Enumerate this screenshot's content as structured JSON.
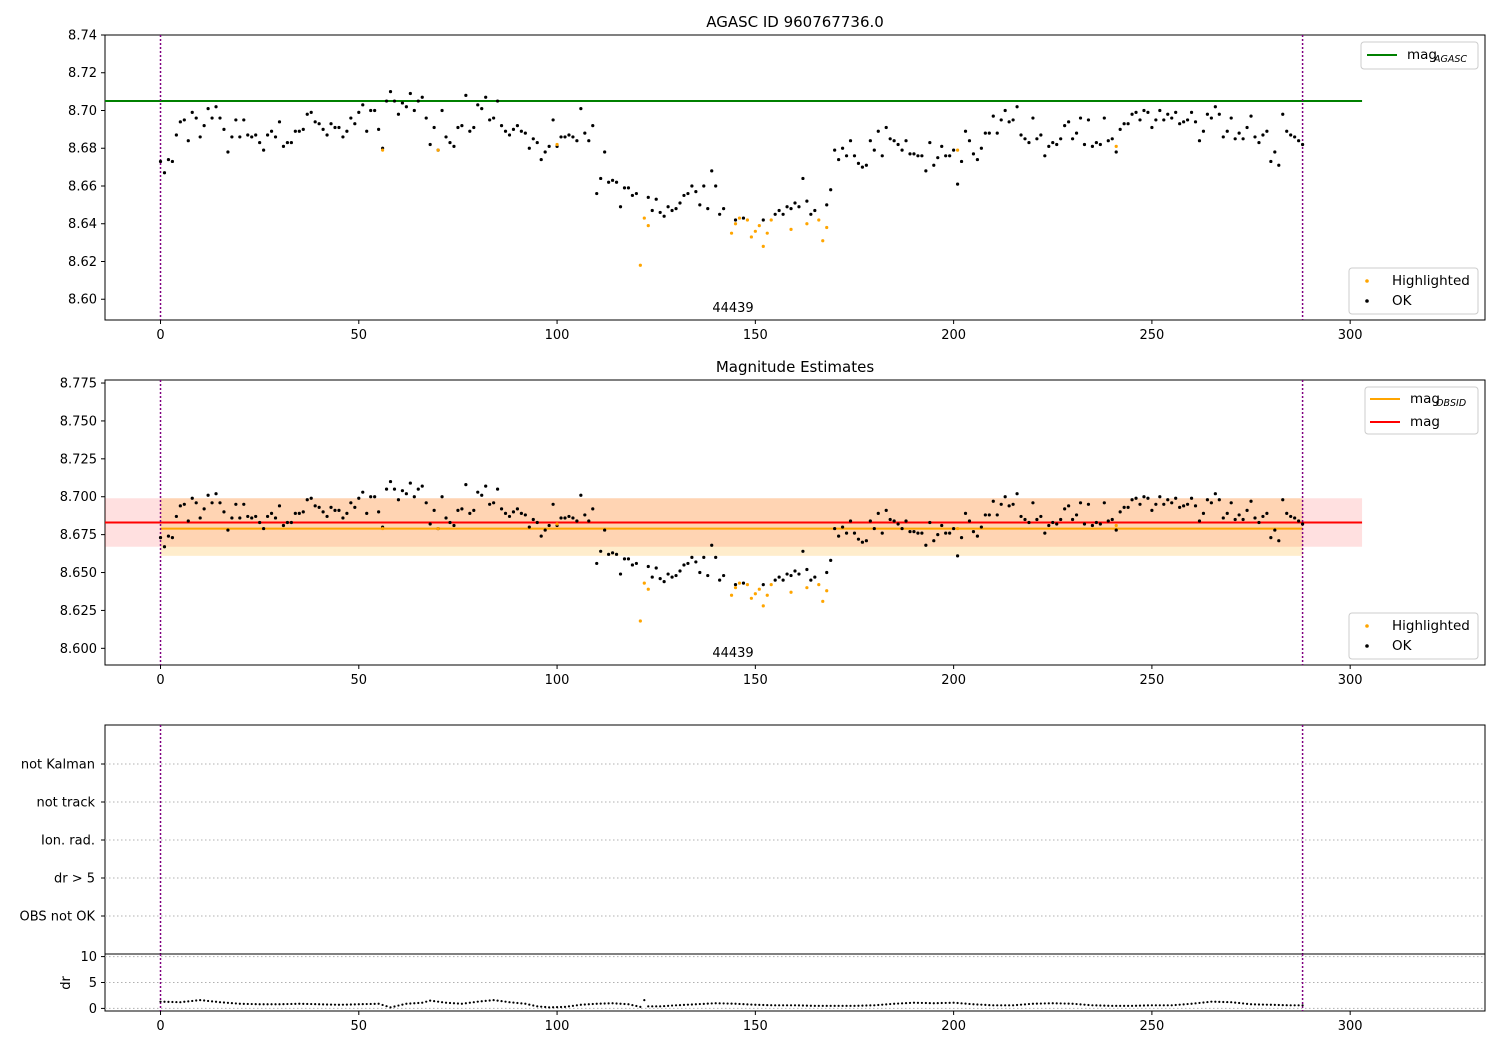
{
  "figure_title": "AGASC ID 960767736.0",
  "chart_data": [
    {
      "id": "top",
      "type": "scatter",
      "title": "AGASC ID 960767736.0",
      "xlim": [
        -14,
        334
      ],
      "ylim": [
        8.589,
        8.74
      ],
      "xticks": [
        0,
        50,
        100,
        150,
        200,
        250,
        300
      ],
      "yticks": [
        8.6,
        8.62,
        8.64,
        8.66,
        8.68,
        8.7,
        8.72,
        8.74
      ],
      "ytick_labels": [
        "8.60",
        "8.62",
        "8.64",
        "8.66",
        "8.68",
        "8.70",
        "8.72",
        "8.74"
      ],
      "obsid_label": "44439",
      "hlines": [
        {
          "name": "mag",
          "sub": "AGASC",
          "y": 8.705,
          "x0": -14,
          "x1": 303,
          "color": "#008000"
        }
      ],
      "bands": [],
      "legend_lines": [
        {
          "main": "mag",
          "sub": "AGASC",
          "color": "#008000"
        }
      ],
      "legend_points": [
        {
          "label": "Highlighted",
          "color": "#FFA500"
        },
        {
          "label": "OK",
          "color": "#000000"
        }
      ],
      "vlines": [
        0,
        288
      ]
    },
    {
      "id": "mid",
      "type": "scatter",
      "title": "Magnitude Estimates",
      "xlim": [
        -14,
        334
      ],
      "ylim": [
        8.589,
        8.777
      ],
      "xticks": [
        0,
        50,
        100,
        150,
        200,
        250,
        300
      ],
      "yticks": [
        8.6,
        8.625,
        8.65,
        8.675,
        8.7,
        8.725,
        8.75,
        8.775
      ],
      "ytick_labels": [
        "8.600",
        "8.625",
        "8.650",
        "8.675",
        "8.700",
        "8.725",
        "8.750",
        "8.775"
      ],
      "obsid_label": "44439",
      "hlines": [
        {
          "name": "mag",
          "sub": "OBSID",
          "y": 8.679,
          "x0": 0,
          "x1": 288,
          "color": "#FFA500"
        },
        {
          "name": "mag",
          "sub": "",
          "y": 8.683,
          "x0": -14,
          "x1": 303,
          "color": "#FF0000"
        }
      ],
      "bands": [
        {
          "y0": 8.667,
          "y1": 8.699,
          "x0": -14,
          "x1": 303,
          "color": "#FF0000",
          "opacity": 0.12
        },
        {
          "y0": 8.661,
          "y1": 8.699,
          "x0": 0,
          "x1": 288,
          "color": "#FFA500",
          "opacity": 0.2
        }
      ],
      "legend_lines": [
        {
          "main": "mag",
          "sub": "OBSID",
          "color": "#FFA500"
        },
        {
          "main": "mag",
          "sub": "",
          "color": "#FF0000"
        }
      ],
      "legend_points": [
        {
          "label": "Highlighted",
          "color": "#FFA500"
        },
        {
          "label": "OK",
          "color": "#000000"
        }
      ],
      "vlines": [
        0,
        288
      ]
    },
    {
      "id": "flags",
      "type": "scatter",
      "title": "",
      "xlim": [
        -14,
        334
      ],
      "categories": [
        "OBS not OK",
        "dr > 5",
        "Ion. rad.",
        "not track",
        "not Kalman"
      ],
      "vlines": [
        0,
        288
      ]
    },
    {
      "id": "dr",
      "type": "line",
      "ylabel": "dr",
      "xlim": [
        -14,
        334
      ],
      "ylim": [
        -0.5,
        10.5
      ],
      "xticks": [
        0,
        50,
        100,
        150,
        200,
        250,
        300
      ],
      "yticks": [
        0,
        5,
        10
      ],
      "ytick_labels": [
        "0",
        "5",
        "10"
      ],
      "vlines": [
        0,
        288
      ]
    }
  ],
  "series": {
    "ok": [
      [
        0,
        8.673
      ],
      [
        1,
        8.667
      ],
      [
        2,
        8.674
      ],
      [
        3,
        8.673
      ],
      [
        4,
        8.687
      ],
      [
        5,
        8.694
      ],
      [
        6,
        8.695
      ],
      [
        7,
        8.684
      ],
      [
        8,
        8.699
      ],
      [
        9,
        8.696
      ],
      [
        10,
        8.686
      ],
      [
        11,
        8.692
      ],
      [
        12,
        8.701
      ],
      [
        13,
        8.696
      ],
      [
        14,
        8.702
      ],
      [
        15,
        8.696
      ],
      [
        16,
        8.69
      ],
      [
        17,
        8.678
      ],
      [
        18,
        8.686
      ],
      [
        19,
        8.695
      ],
      [
        20,
        8.686
      ],
      [
        21,
        8.695
      ],
      [
        22,
        8.687
      ],
      [
        23,
        8.686
      ],
      [
        24,
        8.687
      ],
      [
        25,
        8.683
      ],
      [
        26,
        8.679
      ],
      [
        27,
        8.687
      ],
      [
        28,
        8.689
      ],
      [
        29,
        8.686
      ],
      [
        30,
        8.694
      ],
      [
        31,
        8.681
      ],
      [
        32,
        8.683
      ],
      [
        33,
        8.683
      ],
      [
        34,
        8.689
      ],
      [
        35,
        8.689
      ],
      [
        36,
        8.69
      ],
      [
        37,
        8.698
      ],
      [
        38,
        8.699
      ],
      [
        39,
        8.694
      ],
      [
        40,
        8.693
      ],
      [
        41,
        8.69
      ],
      [
        42,
        8.687
      ],
      [
        43,
        8.693
      ],
      [
        44,
        8.691
      ],
      [
        45,
        8.691
      ],
      [
        46,
        8.686
      ],
      [
        47,
        8.689
      ],
      [
        48,
        8.696
      ],
      [
        49,
        8.693
      ],
      [
        50,
        8.699
      ],
      [
        51,
        8.703
      ],
      [
        52,
        8.689
      ],
      [
        53,
        8.7
      ],
      [
        54,
        8.7
      ],
      [
        55,
        8.69
      ],
      [
        56,
        8.68
      ],
      [
        57,
        8.705
      ],
      [
        58,
        8.71
      ],
      [
        59,
        8.705
      ],
      [
        60,
        8.698
      ],
      [
        61,
        8.704
      ],
      [
        62,
        8.702
      ],
      [
        63,
        8.709
      ],
      [
        64,
        8.7
      ],
      [
        65,
        8.705
      ],
      [
        66,
        8.707
      ],
      [
        67,
        8.696
      ],
      [
        68,
        8.682
      ],
      [
        69,
        8.691
      ],
      [
        70,
        8.679
      ],
      [
        71,
        8.7
      ],
      [
        72,
        8.686
      ],
      [
        73,
        8.683
      ],
      [
        74,
        8.681
      ],
      [
        75,
        8.691
      ],
      [
        76,
        8.692
      ],
      [
        77,
        8.708
      ],
      [
        78,
        8.689
      ],
      [
        79,
        8.691
      ],
      [
        80,
        8.703
      ],
      [
        81,
        8.701
      ],
      [
        82,
        8.707
      ],
      [
        83,
        8.695
      ],
      [
        84,
        8.696
      ],
      [
        85,
        8.705
      ],
      [
        86,
        8.692
      ],
      [
        87,
        8.689
      ],
      [
        88,
        8.687
      ],
      [
        89,
        8.69
      ],
      [
        90,
        8.692
      ],
      [
        91,
        8.689
      ],
      [
        92,
        8.688
      ],
      [
        93,
        8.68
      ],
      [
        94,
        8.685
      ],
      [
        95,
        8.683
      ],
      [
        96,
        8.674
      ],
      [
        97,
        8.678
      ],
      [
        98,
        8.681
      ],
      [
        99,
        8.695
      ],
      [
        100,
        8.681
      ],
      [
        101,
        8.686
      ],
      [
        102,
        8.686
      ],
      [
        103,
        8.687
      ],
      [
        104,
        8.686
      ],
      [
        105,
        8.684
      ],
      [
        106,
        8.701
      ],
      [
        107,
        8.688
      ],
      [
        108,
        8.684
      ],
      [
        109,
        8.692
      ],
      [
        110,
        8.656
      ],
      [
        111,
        8.664
      ],
      [
        112,
        8.678
      ],
      [
        113,
        8.662
      ],
      [
        114,
        8.663
      ],
      [
        115,
        8.662
      ],
      [
        116,
        8.649
      ],
      [
        117,
        8.659
      ],
      [
        118,
        8.659
      ],
      [
        119,
        8.655
      ],
      [
        120,
        8.656
      ],
      [
        123,
        8.654
      ],
      [
        124,
        8.647
      ],
      [
        125,
        8.653
      ],
      [
        126,
        8.646
      ],
      [
        127,
        8.644
      ],
      [
        128,
        8.649
      ],
      [
        129,
        8.647
      ],
      [
        130,
        8.648
      ],
      [
        131,
        8.651
      ],
      [
        132,
        8.655
      ],
      [
        133,
        8.656
      ],
      [
        134,
        8.66
      ],
      [
        135,
        8.657
      ],
      [
        136,
        8.65
      ],
      [
        137,
        8.66
      ],
      [
        138,
        8.648
      ],
      [
        139,
        8.668
      ],
      [
        140,
        8.66
      ],
      [
        141,
        8.645
      ],
      [
        142,
        8.648
      ],
      [
        145,
        8.642
      ],
      [
        147,
        8.643
      ],
      [
        161,
        8.649
      ],
      [
        152,
        8.642
      ],
      [
        155,
        8.645
      ],
      [
        156,
        8.647
      ],
      [
        157,
        8.645
      ],
      [
        158,
        8.649
      ],
      [
        159,
        8.648
      ],
      [
        160,
        8.651
      ],
      [
        162,
        8.664
      ],
      [
        163,
        8.652
      ],
      [
        164,
        8.645
      ],
      [
        165,
        8.647
      ],
      [
        168,
        8.65
      ],
      [
        169,
        8.658
      ],
      [
        170,
        8.679
      ],
      [
        171,
        8.674
      ],
      [
        172,
        8.68
      ],
      [
        173,
        8.676
      ],
      [
        174,
        8.684
      ],
      [
        175,
        8.676
      ],
      [
        176,
        8.672
      ],
      [
        177,
        8.67
      ],
      [
        178,
        8.671
      ],
      [
        179,
        8.684
      ],
      [
        180,
        8.679
      ],
      [
        181,
        8.689
      ],
      [
        182,
        8.676
      ],
      [
        183,
        8.691
      ],
      [
        184,
        8.685
      ],
      [
        185,
        8.684
      ],
      [
        186,
        8.682
      ],
      [
        187,
        8.679
      ],
      [
        188,
        8.684
      ],
      [
        189,
        8.677
      ],
      [
        190,
        8.677
      ],
      [
        191,
        8.676
      ],
      [
        192,
        8.676
      ],
      [
        193,
        8.668
      ],
      [
        194,
        8.683
      ],
      [
        195,
        8.671
      ],
      [
        196,
        8.675
      ],
      [
        197,
        8.681
      ],
      [
        198,
        8.676
      ],
      [
        199,
        8.676
      ],
      [
        200,
        8.679
      ],
      [
        201,
        8.661
      ],
      [
        202,
        8.673
      ],
      [
        203,
        8.689
      ],
      [
        204,
        8.684
      ],
      [
        205,
        8.677
      ],
      [
        206,
        8.674
      ],
      [
        207,
        8.68
      ],
      [
        208,
        8.688
      ],
      [
        209,
        8.688
      ],
      [
        210,
        8.697
      ],
      [
        211,
        8.688
      ],
      [
        212,
        8.695
      ],
      [
        213,
        8.7
      ],
      [
        214,
        8.694
      ],
      [
        215,
        8.695
      ],
      [
        216,
        8.702
      ],
      [
        217,
        8.687
      ],
      [
        218,
        8.685
      ],
      [
        219,
        8.683
      ],
      [
        220,
        8.696
      ],
      [
        221,
        8.685
      ],
      [
        222,
        8.687
      ],
      [
        223,
        8.676
      ],
      [
        224,
        8.681
      ],
      [
        225,
        8.683
      ],
      [
        226,
        8.682
      ],
      [
        227,
        8.685
      ],
      [
        228,
        8.692
      ],
      [
        229,
        8.694
      ],
      [
        230,
        8.685
      ],
      [
        231,
        8.688
      ],
      [
        232,
        8.696
      ],
      [
        233,
        8.682
      ],
      [
        234,
        8.695
      ],
      [
        235,
        8.681
      ],
      [
        236,
        8.683
      ],
      [
        237,
        8.682
      ],
      [
        238,
        8.696
      ],
      [
        239,
        8.684
      ],
      [
        240,
        8.685
      ],
      [
        241,
        8.678
      ],
      [
        242,
        8.69
      ],
      [
        243,
        8.693
      ],
      [
        244,
        8.693
      ],
      [
        245,
        8.698
      ],
      [
        246,
        8.699
      ],
      [
        247,
        8.695
      ],
      [
        248,
        8.7
      ],
      [
        249,
        8.699
      ],
      [
        250,
        8.691
      ],
      [
        251,
        8.695
      ],
      [
        252,
        8.7
      ],
      [
        253,
        8.695
      ],
      [
        254,
        8.698
      ],
      [
        255,
        8.696
      ],
      [
        256,
        8.699
      ],
      [
        257,
        8.693
      ],
      [
        258,
        8.694
      ],
      [
        259,
        8.695
      ],
      [
        260,
        8.699
      ],
      [
        261,
        8.694
      ],
      [
        262,
        8.684
      ],
      [
        263,
        8.689
      ],
      [
        264,
        8.698
      ],
      [
        265,
        8.696
      ],
      [
        266,
        8.702
      ],
      [
        267,
        8.698
      ],
      [
        268,
        8.686
      ],
      [
        269,
        8.689
      ],
      [
        270,
        8.696
      ],
      [
        271,
        8.685
      ],
      [
        272,
        8.688
      ],
      [
        273,
        8.685
      ],
      [
        274,
        8.691
      ],
      [
        275,
        8.697
      ],
      [
        276,
        8.686
      ],
      [
        277,
        8.683
      ],
      [
        278,
        8.687
      ],
      [
        279,
        8.689
      ],
      [
        280,
        8.673
      ],
      [
        281,
        8.678
      ],
      [
        282,
        8.671
      ],
      [
        283,
        8.698
      ],
      [
        284,
        8.689
      ],
      [
        285,
        8.687
      ],
      [
        286,
        8.686
      ],
      [
        287,
        8.684
      ],
      [
        288,
        8.682
      ]
    ],
    "highlighted": [
      [
        121,
        8.618
      ],
      [
        122,
        8.643
      ],
      [
        123,
        8.639
      ],
      [
        144,
        8.635
      ],
      [
        145,
        8.64
      ],
      [
        146,
        8.643
      ],
      [
        148,
        8.642
      ],
      [
        149,
        8.633
      ],
      [
        150,
        8.636
      ],
      [
        151,
        8.639
      ],
      [
        152,
        8.628
      ],
      [
        153,
        8.635
      ],
      [
        154,
        8.642
      ],
      [
        159,
        8.637
      ],
      [
        163,
        8.64
      ],
      [
        166,
        8.642
      ],
      [
        167,
        8.631
      ],
      [
        168,
        8.638
      ],
      [
        56,
        8.679
      ],
      [
        70,
        8.679
      ],
      [
        100,
        8.682
      ],
      [
        201,
        8.679
      ],
      [
        241,
        8.681
      ]
    ],
    "dr": [
      [
        0,
        1.3
      ],
      [
        5,
        1.2
      ],
      [
        10,
        1.6
      ],
      [
        15,
        1.2
      ],
      [
        20,
        0.9
      ],
      [
        25,
        0.8
      ],
      [
        30,
        0.8
      ],
      [
        35,
        0.9
      ],
      [
        40,
        0.8
      ],
      [
        45,
        0.7
      ],
      [
        50,
        0.8
      ],
      [
        55,
        0.9
      ],
      [
        58,
        0.2
      ],
      [
        62,
        0.9
      ],
      [
        66,
        1.1
      ],
      [
        68,
        1.5
      ],
      [
        72,
        1.1
      ],
      [
        76,
        0.9
      ],
      [
        80,
        1.3
      ],
      [
        84,
        1.6
      ],
      [
        88,
        1.2
      ],
      [
        92,
        0.9
      ],
      [
        95,
        0.4
      ],
      [
        98,
        0.2
      ],
      [
        102,
        0.3
      ],
      [
        106,
        0.7
      ],
      [
        110,
        0.9
      ],
      [
        114,
        1.0
      ],
      [
        118,
        0.8
      ],
      [
        121,
        0.3
      ],
      [
        122,
        1.6
      ],
      [
        123,
        0.4
      ],
      [
        126,
        0.4
      ],
      [
        130,
        0.6
      ],
      [
        135,
        0.8
      ],
      [
        140,
        1.0
      ],
      [
        145,
        0.9
      ],
      [
        150,
        0.7
      ],
      [
        155,
        0.6
      ],
      [
        160,
        0.6
      ],
      [
        165,
        0.5
      ],
      [
        170,
        0.5
      ],
      [
        175,
        0.5
      ],
      [
        180,
        0.6
      ],
      [
        185,
        0.9
      ],
      [
        190,
        1.1
      ],
      [
        195,
        1.0
      ],
      [
        200,
        1.1
      ],
      [
        205,
        0.8
      ],
      [
        210,
        0.6
      ],
      [
        215,
        0.6
      ],
      [
        220,
        0.9
      ],
      [
        225,
        1.0
      ],
      [
        230,
        0.9
      ],
      [
        235,
        0.6
      ],
      [
        240,
        0.5
      ],
      [
        245,
        0.5
      ],
      [
        250,
        0.6
      ],
      [
        255,
        0.6
      ],
      [
        260,
        0.9
      ],
      [
        265,
        1.3
      ],
      [
        270,
        1.2
      ],
      [
        275,
        0.8
      ],
      [
        280,
        0.7
      ],
      [
        285,
        0.6
      ],
      [
        288,
        0.6
      ]
    ]
  }
}
